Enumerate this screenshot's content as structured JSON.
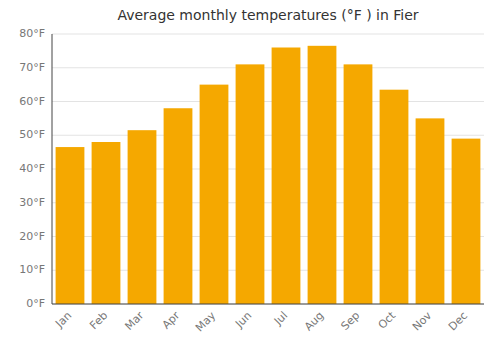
{
  "chart_data": {
    "type": "bar",
    "title": "Average monthly temperatures (°F ) in Fier",
    "categories": [
      "Jan",
      "Feb",
      "Mar",
      "Apr",
      "May",
      "Jun",
      "Jul",
      "Aug",
      "Sep",
      "Oct",
      "Nov",
      "Dec"
    ],
    "values": [
      46.5,
      48.0,
      51.5,
      58.0,
      65.0,
      71.0,
      76.0,
      76.5,
      71.0,
      63.5,
      55.0,
      49.0
    ],
    "color": "#F5A800",
    "ylim": [
      0,
      80
    ],
    "yticks": [
      {
        "value": 0,
        "label": "0°F"
      },
      {
        "value": 10,
        "label": "10°F"
      },
      {
        "value": 20,
        "label": "20°F"
      },
      {
        "value": 30,
        "label": "30°F"
      },
      {
        "value": 40,
        "label": "40°F"
      },
      {
        "value": 50,
        "label": "50°F"
      },
      {
        "value": 60,
        "label": "60°F"
      },
      {
        "value": 70,
        "label": "70°F"
      },
      {
        "value": 80,
        "label": "80°F"
      }
    ],
    "grid": true
  }
}
